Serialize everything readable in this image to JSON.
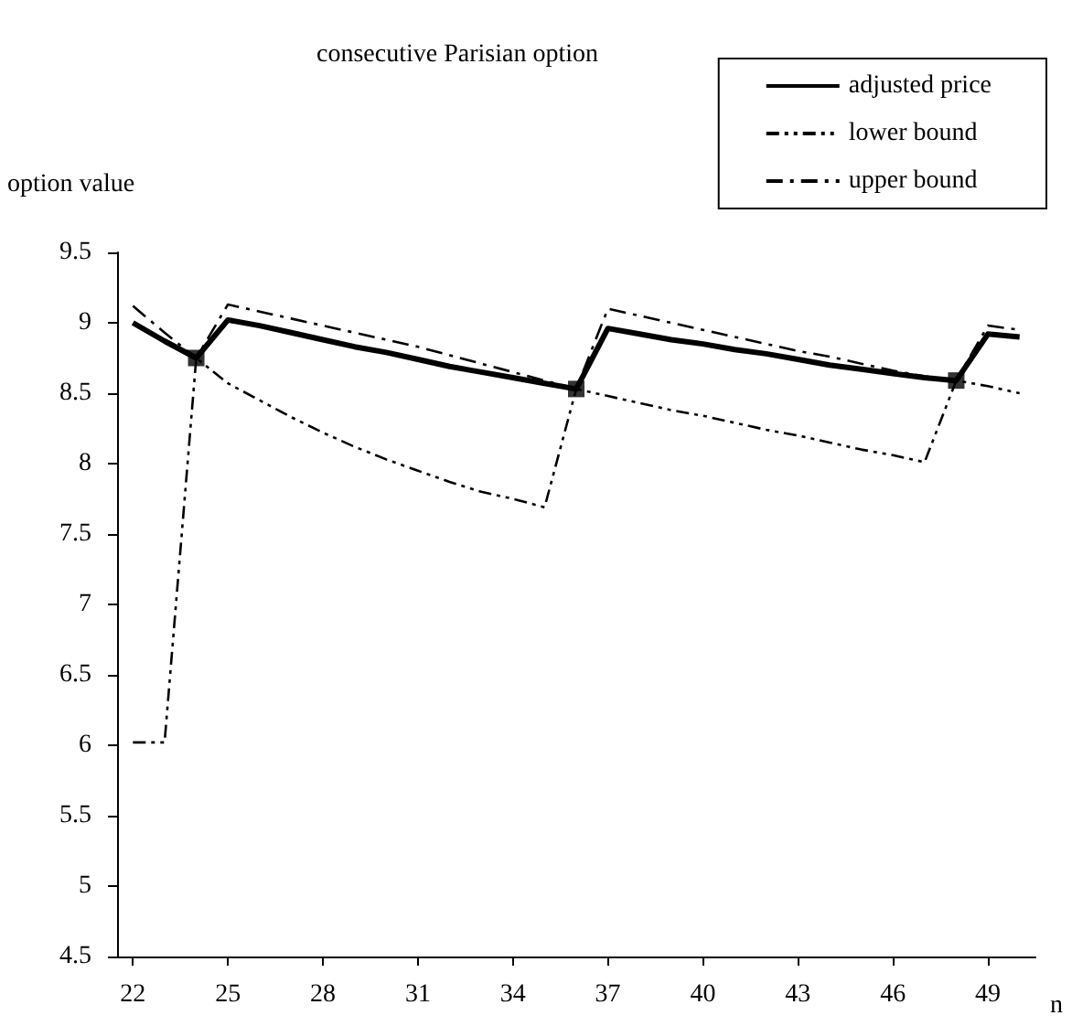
{
  "chart_data": {
    "type": "line",
    "title": "consecutive Parisian option",
    "xlabel": "n",
    "ylabel": "option value",
    "x": [
      22,
      23,
      24,
      25,
      26,
      27,
      28,
      29,
      30,
      31,
      32,
      33,
      34,
      35,
      36,
      37,
      38,
      39,
      40,
      41,
      42,
      43,
      44,
      45,
      46,
      47,
      48,
      49,
      50
    ],
    "xlim": [
      21.5,
      50.5
    ],
    "xticks": [
      22,
      25,
      28,
      31,
      34,
      37,
      40,
      43,
      46,
      49
    ],
    "ylim": [
      4.5,
      9.5
    ],
    "yticks": [
      4.5,
      5,
      5.5,
      6,
      6.5,
      7,
      7.5,
      8,
      8.5,
      9,
      9.5
    ],
    "grid": false,
    "legend": "top right",
    "marker": "none",
    "series": [
      {
        "name": "adjusted price",
        "color": "#000000",
        "line_style": "solid",
        "values": [
          9.0,
          8.87,
          8.75,
          9.02,
          8.98,
          8.93,
          8.88,
          8.83,
          8.79,
          8.74,
          8.69,
          8.65,
          8.61,
          8.57,
          8.53,
          8.96,
          8.92,
          8.88,
          8.85,
          8.81,
          8.78,
          8.74,
          8.7,
          8.67,
          8.64,
          8.61,
          8.59,
          8.92,
          8.9
        ]
      },
      {
        "name": "lower bound",
        "color": "#000000",
        "line_style": "dashed",
        "values": [
          6.02,
          6.02,
          8.75,
          8.57,
          8.45,
          8.33,
          8.22,
          8.12,
          8.03,
          7.95,
          7.87,
          7.8,
          7.75,
          7.69,
          8.53,
          8.48,
          8.43,
          8.38,
          8.34,
          8.29,
          8.24,
          8.2,
          8.15,
          8.1,
          8.06,
          8.01,
          8.59,
          8.55,
          8.5
        ]
      },
      {
        "name": "upper bound",
        "color": "#000000",
        "line_style": "dashed",
        "values": [
          9.12,
          8.93,
          8.75,
          9.13,
          9.08,
          9.03,
          8.98,
          8.93,
          8.88,
          8.83,
          8.77,
          8.71,
          8.65,
          8.59,
          8.53,
          9.1,
          9.05,
          9.0,
          8.95,
          8.9,
          8.85,
          8.8,
          8.76,
          8.71,
          8.66,
          8.62,
          8.59,
          8.98,
          8.95
        ]
      },
      {
        "type": "scatter",
        "color": "#000000",
        "marker": "square",
        "x": [
          24,
          36,
          48
        ],
        "values": [
          8.75,
          8.53,
          8.59
        ]
      }
    ]
  }
}
